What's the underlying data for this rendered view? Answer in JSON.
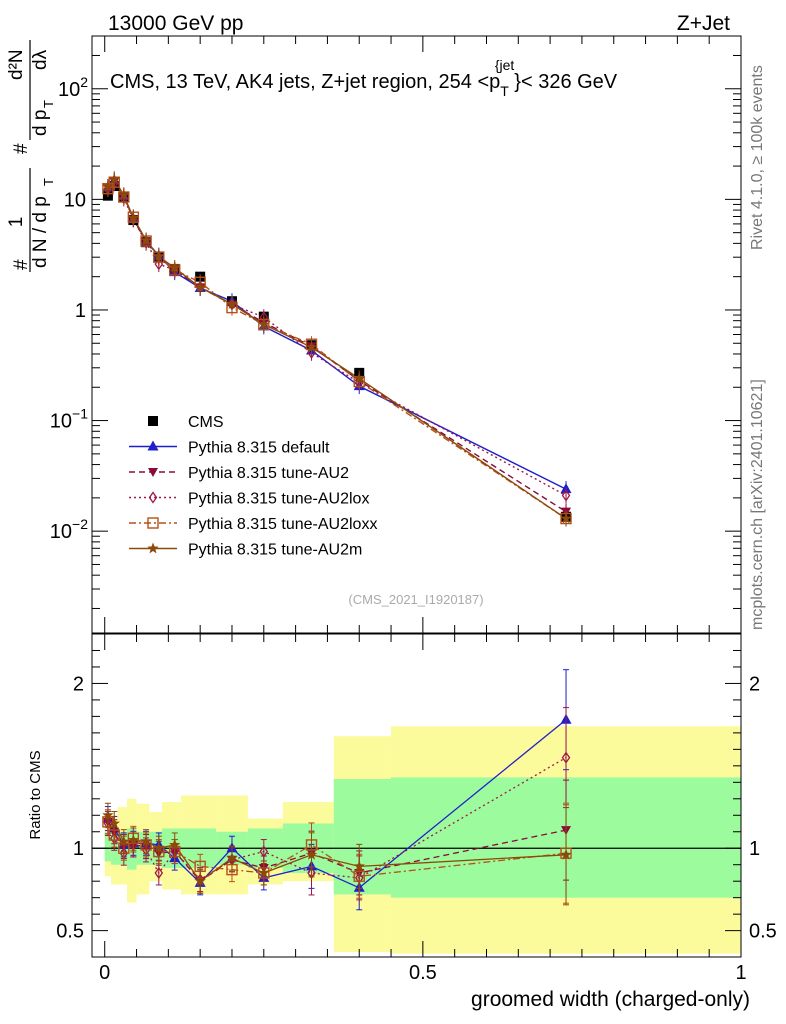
{
  "header": {
    "energy": "13000 GeV pp",
    "process": "Z+Jet"
  },
  "side_labels": {
    "rivet": "Rivet 4.1.0, ≥ 100k events",
    "mcplots": "mcplots.cern.ch [arXiv:2401.10621]"
  },
  "colors": {
    "CMS": "#000000",
    "default": "#1f1fcc",
    "AU2": "#8b0a3c",
    "AU2lox": "#a01848",
    "AU2loxx": "#b5501a",
    "AU2m": "#8c4a0a",
    "green": "#9cfb9c",
    "yellow": "#fbfb9c"
  },
  "chart_data": [
    {
      "type": "scatter",
      "panel": "main",
      "title": "CMS, 13 TeV, AK4 jets, Z+jet region, 254 <p_T^{jet}< 326 GeV",
      "title_parts": {
        "text1": "CMS, 13 TeV, AK4 jets, Z+jet region, 254 <p",
        "sub": "T",
        "sup": "{jet",
        "text2": "}< 326 GeV"
      },
      "ylabel": "1/N dN/dλ",
      "ylabel_parts": {
        "frac1_num": "1",
        "frac1_den": "d N / d p",
        "frac2_num": "d²N",
        "frac2_den": "d p",
        "sub": "T",
        "dl": "dλ",
        "hash": "#"
      },
      "yscale": "log",
      "ylim": [
        0.0012,
        300
      ],
      "y_ticks": [
        {
          "v": 0.01,
          "base": "10",
          "exp": "−2"
        },
        {
          "v": 0.1,
          "base": "10",
          "exp": "−1"
        },
        {
          "v": 1,
          "base": "1",
          "exp": ""
        },
        {
          "v": 10,
          "base": "10",
          "exp": ""
        },
        {
          "v": 100,
          "base": "10",
          "exp": "2"
        }
      ],
      "xlim": [
        -0.02,
        1.0
      ],
      "watermark": "(CMS_2021_I1920187)",
      "legend_position": "bottom-left",
      "x": [
        0.005,
        0.015,
        0.03,
        0.045,
        0.065,
        0.085,
        0.11,
        0.15,
        0.2,
        0.25,
        0.325,
        0.4,
        0.725
      ],
      "series": [
        {
          "name": "CMS",
          "key": "CMS",
          "marker": "square",
          "values": [
            10.8,
            13.2,
            10.5,
            6.5,
            4.1,
            3.05,
            2.35,
            2.0,
            1.2,
            0.87,
            0.48,
            0.27,
            0.0135
          ]
        },
        {
          "name": "Pythia 8.315 default",
          "key": "default",
          "marker": "triangle-up",
          "line": "solid",
          "values": [
            12.8,
            14.8,
            10.7,
            6.7,
            4.2,
            3.1,
            2.2,
            1.58,
            1.2,
            0.71,
            0.43,
            0.205,
            0.024
          ]
        },
        {
          "name": "Pythia 8.315 tune-AU2",
          "key": "AU2",
          "marker": "triangle-down",
          "line": "dashed",
          "values": [
            12.6,
            14.5,
            10.6,
            6.6,
            4.15,
            2.95,
            2.3,
            1.6,
            1.12,
            0.77,
            0.47,
            0.23,
            0.015
          ]
        },
        {
          "name": "Pythia 8.315 tune-AU2lox",
          "key": "AU2lox",
          "marker": "diamond-open",
          "line": "dotted",
          "values": [
            12.4,
            14.0,
            10.2,
            6.6,
            4.05,
            2.6,
            2.3,
            1.62,
            1.12,
            0.86,
            0.41,
            0.22,
            0.021
          ]
        },
        {
          "name": "Pythia 8.315 tune-AU2loxx",
          "key": "AU2loxx",
          "marker": "square-open",
          "line": "dashdot",
          "values": [
            12.5,
            14.3,
            10.5,
            6.9,
            4.2,
            3.0,
            2.3,
            1.78,
            1.05,
            0.74,
            0.49,
            0.225,
            0.013
          ]
        },
        {
          "name": "Pythia 8.315 tune-AU2m",
          "key": "AU2m",
          "marker": "star",
          "line": "solid",
          "values": [
            13.0,
            15.2,
            10.9,
            6.8,
            4.25,
            3.05,
            2.4,
            1.6,
            1.13,
            0.74,
            0.46,
            0.24,
            0.013
          ]
        }
      ]
    },
    {
      "type": "line",
      "panel": "ratio",
      "ylabel": "Ratio to CMS",
      "xlabel": "groomed width (charged-only)",
      "ylim": [
        0.34,
        2.3
      ],
      "y_ticks": [
        0.5,
        1,
        2
      ],
      "x_ticks": [
        0,
        0.5,
        1
      ],
      "xlim": [
        -0.02,
        1.0
      ],
      "band_edges": [
        0.0,
        0.01,
        0.02,
        0.035,
        0.05,
        0.07,
        0.09,
        0.12,
        0.175,
        0.225,
        0.28,
        0.36,
        0.45,
        1.0
      ],
      "band_inner": [
        [
          0.92,
          1.1
        ],
        [
          0.9,
          1.08
        ],
        [
          0.9,
          1.1
        ],
        [
          0.87,
          1.12
        ],
        [
          0.9,
          1.1
        ],
        [
          0.9,
          1.1
        ],
        [
          0.88,
          1.12
        ],
        [
          0.88,
          1.12
        ],
        [
          0.9,
          1.1
        ],
        [
          0.88,
          1.12
        ],
        [
          0.85,
          1.15
        ],
        [
          0.72,
          1.42
        ],
        [
          0.7,
          1.43
        ]
      ],
      "band_outer": [
        [
          0.83,
          1.2
        ],
        [
          0.78,
          1.2
        ],
        [
          0.78,
          1.25
        ],
        [
          0.67,
          1.3
        ],
        [
          0.72,
          1.27
        ],
        [
          0.8,
          1.22
        ],
        [
          0.75,
          1.28
        ],
        [
          0.72,
          1.32
        ],
        [
          0.72,
          1.32
        ],
        [
          0.78,
          1.18
        ],
        [
          0.8,
          1.28
        ],
        [
          0.37,
          1.68
        ],
        [
          0.36,
          1.74
        ]
      ],
      "x": [
        0.005,
        0.015,
        0.03,
        0.045,
        0.065,
        0.085,
        0.11,
        0.15,
        0.2,
        0.25,
        0.325,
        0.4,
        0.725
      ],
      "series": [
        {
          "name": "Pythia 8.315 default",
          "key": "default",
          "values": [
            1.18,
            1.12,
            1.02,
            1.03,
            1.03,
            1.02,
            0.94,
            0.79,
            1.0,
            0.82,
            0.89,
            0.76,
            1.78
          ]
        },
        {
          "name": "Pythia 8.315 tune-AU2",
          "key": "AU2",
          "values": [
            1.16,
            1.1,
            1.01,
            1.02,
            1.01,
            0.97,
            0.98,
            0.8,
            0.93,
            0.88,
            0.97,
            0.85,
            1.11
          ]
        },
        {
          "name": "Pythia 8.315 tune-AU2lox",
          "key": "AU2lox",
          "values": [
            1.15,
            1.06,
            0.97,
            1.02,
            0.99,
            0.85,
            0.98,
            0.81,
            0.93,
            0.98,
            0.85,
            0.82,
            1.55
          ]
        },
        {
          "name": "Pythia 8.315 tune-AU2loxx",
          "key": "AU2loxx",
          "values": [
            1.16,
            1.08,
            1.0,
            1.06,
            1.02,
            0.98,
            0.98,
            0.89,
            0.87,
            0.85,
            1.02,
            0.83,
            0.97
          ]
        },
        {
          "name": "Pythia 8.315 tune-AU2m",
          "key": "AU2m",
          "values": [
            1.2,
            1.15,
            1.04,
            1.05,
            1.04,
            1.0,
            1.02,
            0.8,
            0.94,
            0.85,
            0.96,
            0.89,
            0.96
          ]
        }
      ]
    }
  ]
}
